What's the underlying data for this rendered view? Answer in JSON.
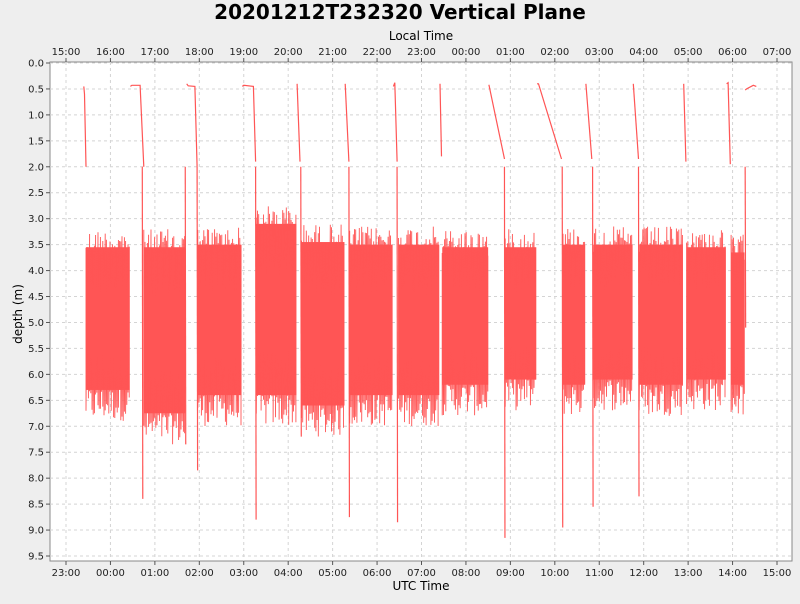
{
  "chart_data": {
    "type": "line",
    "title": "20201212T232320 Vertical Plane",
    "xlabel": "UTC Time",
    "x2label": "Local Time",
    "ylabel": "depth (m)",
    "y_inverted": true,
    "ylim": [
      0.0,
      9.5
    ],
    "xlim_utc_hours": [
      23.0,
      15.5
    ],
    "grid": true,
    "series_color": "#ff5555",
    "y_ticks": [
      "0.0",
      "0.5",
      "1.0",
      "1.5",
      "2.0",
      "2.5",
      "3.0",
      "3.5",
      "4.0",
      "4.5",
      "5.0",
      "5.5",
      "6.0",
      "6.5",
      "7.0",
      "7.5",
      "8.0",
      "8.5",
      "9.0",
      "9.5"
    ],
    "x_ticks_utc": [
      "23:00",
      "00:00",
      "01:00",
      "02:00",
      "03:00",
      "04:00",
      "05:00",
      "06:00",
      "07:00",
      "08:00",
      "09:00",
      "10:00",
      "11:00",
      "12:00",
      "13:00",
      "14:00",
      "15:00"
    ],
    "x_ticks_local": [
      "15:00",
      "16:00",
      "17:00",
      "18:00",
      "19:00",
      "20:00",
      "21:00",
      "22:00",
      "23:00",
      "00:00",
      "01:00",
      "02:00",
      "03:00",
      "04:00",
      "05:00",
      "06:00",
      "07:00"
    ],
    "surface_segments": [
      {
        "utc": [
          "23:24",
          "23:25",
          "23:27"
        ],
        "depth": [
          0.45,
          0.6,
          2.0
        ]
      },
      {
        "utc": [
          "00:27",
          "00:29",
          "00:40",
          "00:45"
        ],
        "depth": [
          0.45,
          0.43,
          0.43,
          2.0
        ]
      },
      {
        "utc": [
          "01:43",
          "01:45",
          "01:54",
          "01:57"
        ],
        "depth": [
          0.4,
          0.44,
          0.45,
          2.0
        ]
      },
      {
        "utc": [
          "02:58",
          "03:00",
          "03:13",
          "03:16"
        ],
        "depth": [
          0.45,
          0.43,
          0.45,
          1.9
        ]
      },
      {
        "utc": [
          "04:12",
          "04:16"
        ],
        "depth": [
          0.4,
          1.9
        ]
      },
      {
        "utc": [
          "05:17",
          "05:22"
        ],
        "depth": [
          0.4,
          1.9
        ]
      },
      {
        "utc": [
          "06:22",
          "06:24",
          "06:27"
        ],
        "depth": [
          0.45,
          0.38,
          1.9
        ]
      },
      {
        "utc": [
          "07:25",
          "07:27"
        ],
        "depth": [
          0.4,
          1.8
        ]
      },
      {
        "utc": [
          "08:31",
          "08:52"
        ],
        "depth": [
          0.42,
          1.85
        ]
      },
      {
        "utc": [
          "09:36",
          "09:38",
          "10:09"
        ],
        "depth": [
          0.4,
          0.4,
          1.85
        ]
      },
      {
        "utc": [
          "10:42",
          "10:50"
        ],
        "depth": [
          0.4,
          1.85
        ]
      },
      {
        "utc": [
          "11:46",
          "11:53"
        ],
        "depth": [
          0.4,
          1.85
        ]
      },
      {
        "utc": [
          "12:54",
          "12:57"
        ],
        "depth": [
          0.4,
          1.9
        ]
      },
      {
        "utc": [
          "13:52",
          "13:54",
          "13:57"
        ],
        "depth": [
          0.4,
          0.38,
          1.95
        ]
      },
      {
        "utc": [
          "14:17",
          "14:19",
          "14:28",
          "14:32"
        ],
        "depth": [
          0.52,
          0.5,
          0.43,
          0.45
        ]
      }
    ],
    "dive_bands": [
      {
        "utc_start": "23:27",
        "utc_end": "00:26",
        "depth_min": 3.2,
        "depth_max": 6.9
      },
      {
        "utc_start": "00:45",
        "utc_end": "01:41",
        "depth_min": 3.2,
        "depth_max": 7.35
      },
      {
        "utc_start": "01:58",
        "utc_end": "02:57",
        "depth_min": 3.15,
        "depth_max": 7.0
      },
      {
        "utc_start": "03:17",
        "utc_end": "04:11",
        "depth_min": 2.75,
        "depth_max": 7.0
      },
      {
        "utc_start": "04:18",
        "utc_end": "05:16",
        "depth_min": 3.1,
        "depth_max": 7.2
      },
      {
        "utc_start": "05:23",
        "utc_end": "06:21",
        "depth_min": 3.15,
        "depth_max": 7.0
      },
      {
        "utc_start": "06:29",
        "utc_end": "07:24",
        "depth_min": 3.15,
        "depth_max": 7.0
      },
      {
        "utc_start": "07:28",
        "utc_end": "08:30",
        "depth_min": 3.2,
        "depth_max": 6.8
      },
      {
        "utc_start": "08:53",
        "utc_end": "09:35",
        "depth_min": 3.2,
        "depth_max": 6.7
      },
      {
        "utc_start": "10:11",
        "utc_end": "10:41",
        "depth_min": 3.15,
        "depth_max": 6.8
      },
      {
        "utc_start": "10:52",
        "utc_end": "11:45",
        "depth_min": 3.15,
        "depth_max": 6.7
      },
      {
        "utc_start": "11:54",
        "utc_end": "12:53",
        "depth_min": 3.15,
        "depth_max": 6.8
      },
      {
        "utc_start": "12:58",
        "utc_end": "13:51",
        "depth_min": 3.2,
        "depth_max": 6.7
      },
      {
        "utc_start": "13:58",
        "utc_end": "14:16",
        "depth_min": 3.3,
        "depth_max": 6.8
      }
    ],
    "deep_spikes": [
      {
        "utc": "00:43",
        "depth": 8.4
      },
      {
        "utc": "01:41",
        "depth": 7.35
      },
      {
        "utc": "01:57",
        "depth": 7.85
      },
      {
        "utc": "03:16",
        "depth": 8.8
      },
      {
        "utc": "04:17",
        "depth": 7.2
      },
      {
        "utc": "05:22",
        "depth": 8.75
      },
      {
        "utc": "06:27",
        "depth": 8.85
      },
      {
        "utc": "08:52",
        "depth": 9.15
      },
      {
        "utc": "10:10",
        "depth": 8.95
      },
      {
        "utc": "10:51",
        "depth": 8.55
      },
      {
        "utc": "11:53",
        "depth": 8.35
      },
      {
        "utc": "14:17",
        "depth": 5.1
      }
    ]
  }
}
